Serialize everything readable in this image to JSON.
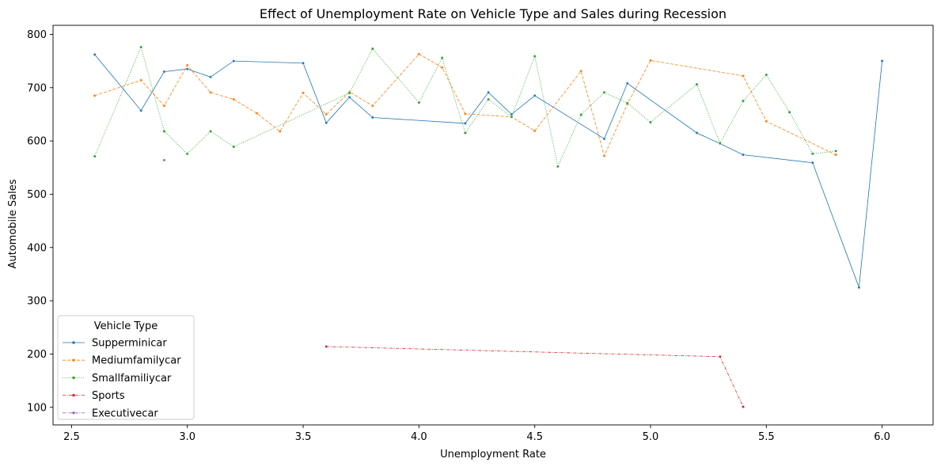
{
  "chart_data": {
    "type": "line",
    "title": "Effect of Unemployment Rate on Vehicle Type and Sales during Recession",
    "xlabel": "Unemployment Rate",
    "ylabel": "Automobile Sales",
    "xlim": [
      2.42,
      6.22
    ],
    "ylim": [
      67,
      817
    ],
    "xticks": [
      2.5,
      3.0,
      3.5,
      4.0,
      4.5,
      5.0,
      5.5,
      6.0
    ],
    "xtick_labels": [
      "2.5",
      "3.0",
      "3.5",
      "4.0",
      "4.5",
      "5.0",
      "5.5",
      "6.0"
    ],
    "yticks": [
      100,
      200,
      300,
      400,
      500,
      600,
      700,
      800
    ],
    "ytick_labels": [
      "100",
      "200",
      "300",
      "400",
      "500",
      "600",
      "700",
      "800"
    ],
    "grid": false,
    "legend": {
      "title": "Vehicle Type",
      "placement": "lower-left"
    },
    "series": [
      {
        "name": "Supperminicar",
        "color": "#1f77b4",
        "dash": "solid",
        "points": [
          [
            2.6,
            762
          ],
          [
            2.8,
            657
          ],
          [
            2.9,
            730
          ],
          [
            3.0,
            735
          ],
          [
            3.1,
            720
          ],
          [
            3.2,
            750
          ],
          [
            3.5,
            746
          ],
          [
            3.6,
            634
          ],
          [
            3.7,
            682
          ],
          [
            3.8,
            644
          ],
          [
            4.2,
            633
          ],
          [
            4.3,
            691
          ],
          [
            4.4,
            650
          ],
          [
            4.5,
            685
          ],
          [
            4.8,
            604
          ],
          [
            4.9,
            708
          ],
          [
            5.2,
            615
          ],
          [
            5.3,
            595
          ],
          [
            5.4,
            574
          ],
          [
            5.7,
            559
          ],
          [
            5.9,
            325
          ],
          [
            6.0,
            750
          ]
        ]
      },
      {
        "name": "Mediumfamilycar",
        "color": "#ff7f0e",
        "dash": "dashed",
        "points": [
          [
            2.6,
            685
          ],
          [
            2.8,
            714
          ],
          [
            2.9,
            666
          ],
          [
            3.0,
            742
          ],
          [
            3.1,
            691
          ],
          [
            3.2,
            678
          ],
          [
            3.3,
            652
          ],
          [
            3.4,
            618
          ],
          [
            3.5,
            690
          ],
          [
            3.6,
            650
          ],
          [
            3.7,
            692
          ],
          [
            3.8,
            666
          ],
          [
            4.0,
            763
          ],
          [
            4.1,
            738
          ],
          [
            4.2,
            651
          ],
          [
            4.4,
            645
          ],
          [
            4.5,
            619
          ],
          [
            4.7,
            731
          ],
          [
            4.8,
            572
          ],
          [
            4.9,
            669
          ],
          [
            5.0,
            751
          ],
          [
            5.4,
            722
          ],
          [
            5.5,
            637
          ],
          [
            5.8,
            574
          ]
        ]
      },
      {
        "name": "Smallfamiliycar",
        "color": "#2ca02c",
        "dash": "dotted",
        "points": [
          [
            2.6,
            571
          ],
          [
            2.8,
            776
          ],
          [
            2.9,
            618
          ],
          [
            3.0,
            576
          ],
          [
            3.1,
            618
          ],
          [
            3.2,
            589
          ],
          [
            3.7,
            690
          ],
          [
            3.8,
            773
          ],
          [
            4.0,
            672
          ],
          [
            4.1,
            756
          ],
          [
            4.2,
            615
          ],
          [
            4.3,
            678
          ],
          [
            4.4,
            645
          ],
          [
            4.5,
            759
          ],
          [
            4.6,
            552
          ],
          [
            4.7,
            649
          ],
          [
            4.8,
            691
          ],
          [
            4.9,
            671
          ],
          [
            5.0,
            635
          ],
          [
            5.2,
            706
          ],
          [
            5.3,
            596
          ],
          [
            5.4,
            675
          ],
          [
            5.5,
            724
          ],
          [
            5.6,
            654
          ],
          [
            5.7,
            576
          ],
          [
            5.8,
            581
          ]
        ]
      },
      {
        "name": "Sports",
        "color": "#d62728",
        "dash": "dashdot",
        "points": [
          [
            3.6,
            214
          ],
          [
            5.3,
            195
          ],
          [
            5.4,
            101
          ]
        ]
      },
      {
        "name": "Executivecar",
        "color": "#9467bd",
        "dash": "dashdot",
        "points": [
          [
            2.9,
            564
          ]
        ]
      }
    ]
  }
}
